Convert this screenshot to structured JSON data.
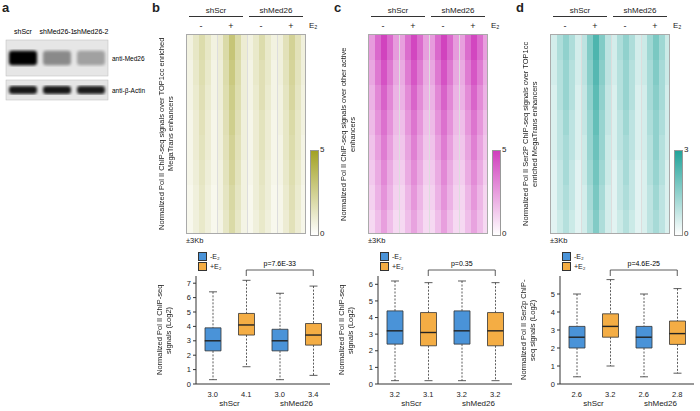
{
  "blot": {
    "label": "a",
    "lanes": [
      "shScr",
      "shMed26-1",
      "shMed26-2"
    ],
    "rows": [
      {
        "antibody": "anti-Med26",
        "intensity": [
          1.0,
          0.4,
          0.3
        ]
      },
      {
        "antibody": "anti-β-Actin",
        "intensity": [
          0.9,
          0.9,
          0.88
        ]
      }
    ]
  },
  "chart_data": [
    {
      "panel": "b",
      "type": "heatmap",
      "y_label": "Normalized Pol II ChIP-seq signals over TOP1cc enriched MegaTrans enhancers",
      "x_label": "±3Kb",
      "color": "#a3a224",
      "groups": [
        "shScr",
        "shMed26"
      ],
      "conditions": [
        "-",
        "+",
        "-",
        "+"
      ],
      "condition_label": "E₂",
      "colorbar": {
        "range": [
          0,
          5
        ],
        "ticks": [
          0,
          5
        ]
      },
      "cells": [
        [
          [
            0.7,
            1.3,
            1.9,
            1.3,
            0.7
          ],
          [
            0.6,
            1.2,
            1.8,
            1.2,
            0.6
          ],
          [
            0.6,
            1.1,
            1.7,
            1.1,
            0.6
          ],
          [
            0.5,
            1.0,
            1.6,
            1.0,
            0.5
          ],
          [
            0.5,
            1.0,
            1.5,
            1.0,
            0.5
          ],
          [
            0.5,
            0.9,
            1.4,
            0.9,
            0.5
          ],
          [
            0.4,
            0.8,
            1.3,
            0.8,
            0.4
          ],
          [
            0.4,
            0.8,
            1.2,
            0.8,
            0.4
          ]
        ],
        [
          [
            1.0,
            2.0,
            3.1,
            2.0,
            1.0
          ],
          [
            0.9,
            1.9,
            2.9,
            1.9,
            0.9
          ],
          [
            0.9,
            1.8,
            2.7,
            1.8,
            0.9
          ],
          [
            0.8,
            1.7,
            2.6,
            1.7,
            0.8
          ],
          [
            0.8,
            1.6,
            2.4,
            1.6,
            0.8
          ],
          [
            0.7,
            1.5,
            2.3,
            1.5,
            0.7
          ],
          [
            0.7,
            1.4,
            2.1,
            1.4,
            0.7
          ],
          [
            0.6,
            1.3,
            2.0,
            1.3,
            0.6
          ]
        ],
        [
          [
            0.7,
            1.2,
            1.9,
            1.2,
            0.7
          ],
          [
            0.6,
            1.2,
            1.7,
            1.2,
            0.6
          ],
          [
            0.6,
            1.1,
            1.7,
            1.1,
            0.6
          ],
          [
            0.5,
            1.0,
            1.5,
            1.0,
            0.5
          ],
          [
            0.5,
            1.0,
            1.5,
            1.0,
            0.5
          ],
          [
            0.5,
            0.9,
            1.4,
            0.9,
            0.5
          ],
          [
            0.4,
            0.9,
            1.3,
            0.9,
            0.4
          ],
          [
            0.4,
            0.8,
            1.2,
            0.8,
            0.4
          ]
        ],
        [
          [
            0.8,
            1.6,
            2.4,
            1.6,
            0.8
          ],
          [
            0.8,
            1.5,
            2.3,
            1.5,
            0.8
          ],
          [
            0.7,
            1.4,
            2.2,
            1.4,
            0.7
          ],
          [
            0.7,
            1.3,
            2.0,
            1.3,
            0.7
          ],
          [
            0.6,
            1.3,
            1.9,
            1.3,
            0.6
          ],
          [
            0.6,
            1.2,
            1.8,
            1.2,
            0.6
          ],
          [
            0.5,
            1.1,
            1.7,
            1.1,
            0.5
          ],
          [
            0.5,
            1.0,
            1.6,
            1.0,
            0.5
          ]
        ]
      ]
    },
    {
      "panel": "b",
      "type": "box",
      "y_label": "Normalized Pol II ChIP-seq signals (Log2)",
      "ylim": [
        0,
        7.5
      ],
      "yticks": [
        0,
        1,
        2,
        3,
        4,
        5,
        6,
        7
      ],
      "legend": "top-left",
      "series": [
        {
          "name": "-E₂",
          "color": "#4a93d8"
        },
        {
          "name": "+E₂",
          "color": "#f4ad44"
        }
      ],
      "groups": [
        "shScr",
        "shMed26"
      ],
      "boxes": [
        {
          "group": "shScr",
          "series": "-E₂",
          "whisker_low": 0.3,
          "q1": 2.3,
          "median": 3.0,
          "median_label": "3.0",
          "q3": 3.9,
          "whisker_high": 6.4
        },
        {
          "group": "shScr",
          "series": "+E₂",
          "whisker_low": 1.2,
          "q1": 3.4,
          "median": 4.1,
          "median_label": "4.1",
          "q3": 4.9,
          "whisker_high": 7.2
        },
        {
          "group": "shMed26",
          "series": "-E₂",
          "whisker_low": 0.3,
          "q1": 2.3,
          "median": 3.0,
          "median_label": "3.0",
          "q3": 3.8,
          "whisker_high": 6.3
        },
        {
          "group": "shMed26",
          "series": "+E₂",
          "whisker_low": 0.6,
          "q1": 2.7,
          "median": 3.4,
          "median_label": "3.4",
          "q3": 4.2,
          "whisker_high": 6.8
        }
      ],
      "comparison": {
        "boxes": [
          1,
          3
        ],
        "label": "p=7.6E-33"
      }
    },
    {
      "panel": "c",
      "type": "heatmap",
      "y_label": "Normalized Pol II ChIP-seq signals over other active enhancers",
      "x_label": "±3Kb",
      "color": "#d03fbd",
      "groups": [
        "shScr",
        "shMed26"
      ],
      "conditions": [
        "-",
        "+",
        "-",
        "+"
      ],
      "condition_label": "E₂",
      "colorbar": {
        "range": [
          0,
          5
        ],
        "ticks": [
          0,
          5
        ]
      },
      "cells": [
        [
          [
            2.6,
            3.9,
            4.9,
            3.9,
            2.6
          ],
          [
            2.3,
            3.5,
            4.5,
            3.5,
            2.3
          ],
          [
            2.0,
            3.1,
            4.1,
            3.1,
            2.0
          ],
          [
            1.8,
            2.8,
            3.7,
            2.8,
            1.8
          ],
          [
            1.6,
            2.5,
            3.4,
            2.5,
            1.6
          ],
          [
            1.4,
            2.2,
            3.1,
            2.2,
            1.4
          ],
          [
            1.2,
            2.0,
            2.8,
            2.0,
            1.2
          ],
          [
            1.0,
            1.7,
            2.5,
            1.7,
            1.0
          ]
        ],
        [
          [
            2.5,
            3.8,
            4.8,
            3.8,
            2.5
          ],
          [
            2.2,
            3.4,
            4.4,
            3.4,
            2.2
          ],
          [
            2.0,
            3.0,
            4.0,
            3.0,
            2.0
          ],
          [
            1.7,
            2.7,
            3.6,
            2.7,
            1.7
          ],
          [
            1.5,
            2.4,
            3.3,
            2.4,
            1.5
          ],
          [
            1.3,
            2.2,
            3.0,
            2.2,
            1.3
          ],
          [
            1.1,
            1.9,
            2.7,
            1.9,
            1.1
          ],
          [
            1.0,
            1.7,
            2.4,
            1.7,
            1.0
          ]
        ],
        [
          [
            2.6,
            3.9,
            4.9,
            3.9,
            2.6
          ],
          [
            2.3,
            3.5,
            4.5,
            3.5,
            2.3
          ],
          [
            2.0,
            3.1,
            4.1,
            3.1,
            2.0
          ],
          [
            1.8,
            2.8,
            3.7,
            2.8,
            1.8
          ],
          [
            1.6,
            2.5,
            3.4,
            2.5,
            1.6
          ],
          [
            1.4,
            2.2,
            3.1,
            2.2,
            1.4
          ],
          [
            1.2,
            2.0,
            2.8,
            2.0,
            1.2
          ],
          [
            1.0,
            1.7,
            2.5,
            1.7,
            1.0
          ]
        ],
        [
          [
            2.5,
            3.8,
            4.8,
            3.8,
            2.5
          ],
          [
            2.2,
            3.4,
            4.4,
            3.4,
            2.2
          ],
          [
            2.0,
            3.0,
            4.0,
            3.0,
            2.0
          ],
          [
            1.7,
            2.7,
            3.6,
            2.7,
            1.7
          ],
          [
            1.5,
            2.4,
            3.3,
            2.4,
            1.5
          ],
          [
            1.3,
            2.2,
            3.0,
            2.2,
            1.3
          ],
          [
            1.1,
            1.9,
            2.7,
            1.9,
            1.1
          ],
          [
            1.0,
            1.7,
            2.4,
            1.7,
            1.0
          ]
        ]
      ]
    },
    {
      "panel": "c",
      "type": "box",
      "y_label": "Normalized Pol II ChIP-seq signals (Log2)",
      "ylim": [
        0,
        6.5
      ],
      "yticks": [
        0,
        1,
        2,
        3,
        4,
        5,
        6
      ],
      "legend": "top-left",
      "series": [
        {
          "name": "-E₂",
          "color": "#4a93d8"
        },
        {
          "name": "+E₂",
          "color": "#f4ad44"
        }
      ],
      "groups": [
        "shScr",
        "shMed26"
      ],
      "boxes": [
        {
          "group": "shScr",
          "series": "-E₂",
          "whisker_low": 0.2,
          "q1": 2.4,
          "median": 3.2,
          "median_label": "3.2",
          "q3": 4.4,
          "whisker_high": 6.2
        },
        {
          "group": "shScr",
          "series": "+E₂",
          "whisker_low": 0.2,
          "q1": 2.3,
          "median": 3.1,
          "median_label": "3.1",
          "q3": 4.3,
          "whisker_high": 6.1
        },
        {
          "group": "shMed26",
          "series": "-E₂",
          "whisker_low": 0.2,
          "q1": 2.4,
          "median": 3.2,
          "median_label": "3.2",
          "q3": 4.4,
          "whisker_high": 6.2
        },
        {
          "group": "shMed26",
          "series": "+E₂",
          "whisker_low": 0.2,
          "q1": 2.3,
          "median": 3.2,
          "median_label": "3.2",
          "q3": 4.3,
          "whisker_high": 6.1
        }
      ],
      "comparison": {
        "boxes": [
          1,
          3
        ],
        "label": "p=0.35"
      }
    },
    {
      "panel": "d",
      "type": "heatmap",
      "y_label": "Normalized Pol II Ser2P ChIP-seq signals over TOP1cc enriched MegaTrans enhancers",
      "x_label": "±3Kb",
      "color": "#22a39a",
      "groups": [
        "shScr",
        "shMed26"
      ],
      "conditions": [
        "-",
        "+",
        "-",
        "+"
      ],
      "condition_label": "E₂",
      "colorbar": {
        "range": [
          0,
          3
        ],
        "ticks": [
          0,
          3
        ]
      },
      "cells": [
        [
          [
            0.6,
            1.1,
            1.5,
            1.1,
            0.6
          ],
          [
            0.6,
            1.0,
            1.4,
            1.0,
            0.6
          ],
          [
            0.5,
            1.0,
            1.4,
            1.0,
            0.5
          ],
          [
            0.5,
            0.9,
            1.3,
            0.9,
            0.5
          ],
          [
            0.5,
            0.9,
            1.2,
            0.9,
            0.5
          ],
          [
            0.4,
            0.8,
            1.2,
            0.8,
            0.4
          ],
          [
            0.4,
            0.8,
            1.1,
            0.8,
            0.4
          ],
          [
            0.4,
            0.7,
            1.0,
            0.7,
            0.4
          ]
        ],
        [
          [
            0.9,
            1.7,
            2.4,
            1.7,
            0.9
          ],
          [
            0.9,
            1.6,
            2.3,
            1.6,
            0.9
          ],
          [
            0.8,
            1.5,
            2.2,
            1.5,
            0.8
          ],
          [
            0.8,
            1.4,
            2.1,
            1.4,
            0.8
          ],
          [
            0.7,
            1.4,
            2.0,
            1.4,
            0.7
          ],
          [
            0.7,
            1.3,
            1.9,
            1.3,
            0.7
          ],
          [
            0.6,
            1.2,
            1.8,
            1.2,
            0.6
          ],
          [
            0.6,
            1.1,
            1.7,
            1.1,
            0.6
          ]
        ],
        [
          [
            0.6,
            1.1,
            1.5,
            1.1,
            0.6
          ],
          [
            0.6,
            1.0,
            1.4,
            1.0,
            0.6
          ],
          [
            0.5,
            1.0,
            1.4,
            1.0,
            0.5
          ],
          [
            0.5,
            0.9,
            1.3,
            0.9,
            0.5
          ],
          [
            0.5,
            0.9,
            1.2,
            0.9,
            0.5
          ],
          [
            0.4,
            0.8,
            1.2,
            0.8,
            0.4
          ],
          [
            0.4,
            0.8,
            1.1,
            0.8,
            0.4
          ],
          [
            0.4,
            0.7,
            1.0,
            0.7,
            0.4
          ]
        ],
        [
          [
            0.7,
            1.3,
            1.8,
            1.3,
            0.7
          ],
          [
            0.7,
            1.2,
            1.7,
            1.2,
            0.7
          ],
          [
            0.6,
            1.2,
            1.6,
            1.2,
            0.6
          ],
          [
            0.6,
            1.1,
            1.5,
            1.1,
            0.6
          ],
          [
            0.6,
            1.0,
            1.5,
            1.0,
            0.6
          ],
          [
            0.5,
            1.0,
            1.4,
            1.0,
            0.5
          ],
          [
            0.5,
            0.9,
            1.3,
            0.9,
            0.5
          ],
          [
            0.5,
            0.9,
            1.2,
            0.9,
            0.5
          ]
        ]
      ]
    },
    {
      "panel": "d",
      "type": "box",
      "y_label": "Normalized Pol II Ser2p ChIP-seq signals (Log2)",
      "ylim": [
        0,
        6
      ],
      "yticks": [
        0,
        1,
        2,
        3,
        4,
        5
      ],
      "legend": "top-left",
      "series": [
        {
          "name": "-E₂",
          "color": "#4a93d8"
        },
        {
          "name": "+E₂",
          "color": "#f4ad44"
        }
      ],
      "groups": [
        "shScr",
        "shMed26"
      ],
      "boxes": [
        {
          "group": "shScr",
          "series": "-E₂",
          "whisker_low": 0.4,
          "q1": 2.0,
          "median": 2.6,
          "median_label": "2.6",
          "q3": 3.2,
          "whisker_high": 5.0
        },
        {
          "group": "shScr",
          "series": "+E₂",
          "whisker_low": 1.0,
          "q1": 2.6,
          "median": 3.2,
          "median_label": "3.2",
          "q3": 3.9,
          "whisker_high": 5.8
        },
        {
          "group": "shMed26",
          "series": "-E₂",
          "whisker_low": 0.4,
          "q1": 2.0,
          "median": 2.6,
          "median_label": "2.6",
          "q3": 3.2,
          "whisker_high": 5.0
        },
        {
          "group": "shMed26",
          "series": "+E₂",
          "whisker_low": 0.6,
          "q1": 2.2,
          "median": 2.8,
          "median_label": "2.8",
          "q3": 3.5,
          "whisker_high": 5.3
        }
      ],
      "comparison": {
        "boxes": [
          1,
          3
        ],
        "label": "p=4.6E-25"
      }
    }
  ]
}
